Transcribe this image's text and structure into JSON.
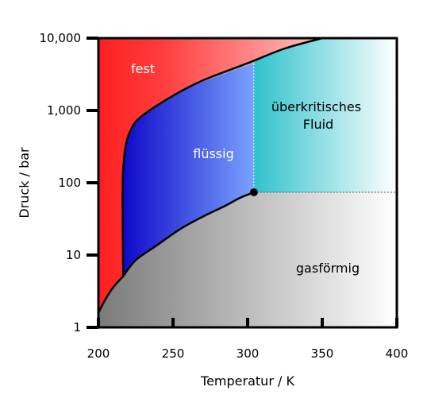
{
  "chart_data": {
    "type": "phase-diagram",
    "xlabel": "Temperatur / K",
    "ylabel": "Druck / bar",
    "xlim": [
      200,
      400
    ],
    "ylim": [
      1,
      10000
    ],
    "y_scale": "log",
    "x_ticks": [
      {
        "value": 200,
        "label": "200"
      },
      {
        "value": 250,
        "label": "250"
      },
      {
        "value": 300,
        "label": "300"
      },
      {
        "value": 350,
        "label": "350"
      },
      {
        "value": 400,
        "label": "400"
      }
    ],
    "y_ticks": [
      {
        "value": 1,
        "label": "1"
      },
      {
        "value": 10,
        "label": "10"
      },
      {
        "value": 100,
        "label": "100"
      },
      {
        "value": 1000,
        "label": "1,000"
      },
      {
        "value": 10000,
        "label": "10,000"
      }
    ],
    "critical_point": {
      "T": 304.2,
      "P": 73.8
    },
    "regions": {
      "solid": {
        "label": "fest",
        "color": "#ff2a2a"
      },
      "liquid": {
        "label": "flüssig",
        "color": "#1a10cc"
      },
      "supercritical": {
        "label": "überkritisches Fluid",
        "label_lines": [
          "überkritisches",
          "Fluid"
        ],
        "color": "#33c0cc"
      },
      "gas": {
        "label": "gasförmig",
        "color": "#808080"
      }
    },
    "sublimation_curve": [
      {
        "T": 200,
        "P": 1.6
      },
      {
        "T": 205,
        "P": 2.5
      },
      {
        "T": 210,
        "P": 3.6
      },
      {
        "T": 216.6,
        "P": 5.1
      }
    ],
    "melting_curve": [
      {
        "T": 216.6,
        "P": 5.1
      },
      {
        "T": 216.3,
        "P": 30
      },
      {
        "T": 216.2,
        "P": 70
      },
      {
        "T": 216.6,
        "P": 150
      },
      {
        "T": 218,
        "P": 300
      },
      {
        "T": 221,
        "P": 500
      },
      {
        "T": 228,
        "P": 800
      },
      {
        "T": 250,
        "P": 1600
      },
      {
        "T": 270,
        "P": 2600
      },
      {
        "T": 300,
        "P": 4500
      },
      {
        "T": 325,
        "P": 7200
      },
      {
        "T": 350,
        "P": 10000
      }
    ],
    "vaporization_curve": [
      {
        "T": 216.6,
        "P": 5.1
      },
      {
        "T": 225,
        "P": 8.5
      },
      {
        "T": 240,
        "P": 14
      },
      {
        "T": 255,
        "P": 23
      },
      {
        "T": 270,
        "P": 34
      },
      {
        "T": 285,
        "P": 48
      },
      {
        "T": 295,
        "P": 62
      },
      {
        "T": 304.2,
        "P": 73.8
      }
    ]
  }
}
